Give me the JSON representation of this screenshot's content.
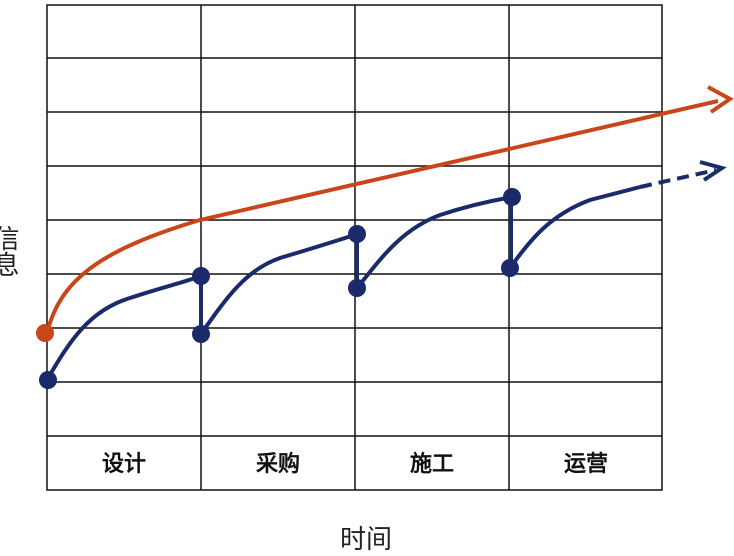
{
  "y_axis_label": "信息",
  "x_axis_label": "时间",
  "phases": [
    "设计",
    "采购",
    "施工",
    "运营"
  ]
}
